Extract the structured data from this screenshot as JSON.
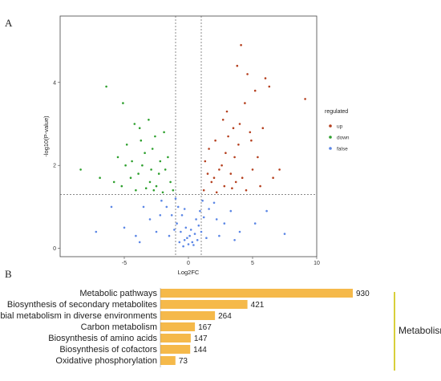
{
  "chart_data": [
    {
      "type": "scatter",
      "panel_label": "A",
      "xlabel": "Log2FC",
      "ylabel": "-log10(P-value)",
      "xlim": [
        -10,
        10
      ],
      "ylim": [
        -0.2,
        5.6
      ],
      "x_ticks": [
        -5,
        0,
        5,
        10
      ],
      "y_ticks": [
        0,
        2,
        4
      ],
      "grid": false,
      "thresholds": {
        "log2fc": [
          -1,
          1
        ],
        "neg_log10_p": 1.3
      },
      "legend": {
        "title": "regulated",
        "placement": "right",
        "items": [
          {
            "label": "up",
            "color": "#b5401f"
          },
          {
            "label": "down",
            "color": "#2ea02e"
          },
          {
            "label": "false",
            "color": "#5b86e5"
          }
        ]
      },
      "series": [
        {
          "name": "up",
          "color": "#b5401f",
          "points": [
            [
              4.1,
              4.9
            ],
            [
              3.8,
              4.4
            ],
            [
              4.6,
              4.2
            ],
            [
              6.0,
              4.1
            ],
            [
              5.2,
              3.8
            ],
            [
              4.4,
              3.5
            ],
            [
              3.0,
              3.3
            ],
            [
              2.7,
              3.1
            ],
            [
              3.5,
              2.9
            ],
            [
              4.8,
              2.8
            ],
            [
              6.3,
              3.9
            ],
            [
              2.1,
              2.6
            ],
            [
              1.6,
              2.4
            ],
            [
              2.9,
              2.3
            ],
            [
              3.9,
              2.5
            ],
            [
              5.4,
              2.2
            ],
            [
              4.9,
              2.6
            ],
            [
              1.3,
              2.1
            ],
            [
              2.4,
              1.9
            ],
            [
              3.3,
              1.8
            ],
            [
              4.2,
              1.7
            ],
            [
              5.0,
              1.9
            ],
            [
              6.6,
              1.7
            ],
            [
              1.8,
              1.6
            ],
            [
              2.8,
              1.5
            ],
            [
              3.7,
              1.6
            ],
            [
              4.5,
              1.4
            ],
            [
              5.6,
              1.5
            ],
            [
              1.2,
              1.4
            ],
            [
              2.2,
              1.35
            ],
            [
              9.1,
              3.6
            ],
            [
              1.5,
              1.8
            ],
            [
              2.6,
              2.0
            ],
            [
              3.1,
              2.7
            ],
            [
              3.6,
              2.2
            ],
            [
              4.0,
              3.0
            ],
            [
              5.8,
              2.9
            ],
            [
              7.1,
              1.9
            ],
            [
              2.0,
              1.7
            ],
            [
              3.4,
              1.45
            ]
          ]
        },
        {
          "name": "down",
          "color": "#2ea02e",
          "points": [
            [
              -6.4,
              3.9
            ],
            [
              -5.1,
              3.5
            ],
            [
              -4.2,
              3.0
            ],
            [
              -3.8,
              2.9
            ],
            [
              -3.1,
              3.1
            ],
            [
              -2.6,
              2.7
            ],
            [
              -4.8,
              2.5
            ],
            [
              -5.5,
              2.2
            ],
            [
              -3.4,
              2.3
            ],
            [
              -2.2,
              2.1
            ],
            [
              -1.8,
              1.9
            ],
            [
              -2.9,
              1.9
            ],
            [
              -3.9,
              1.8
            ],
            [
              -4.5,
              1.7
            ],
            [
              -5.8,
              1.6
            ],
            [
              -1.4,
              1.6
            ],
            [
              -2.5,
              1.5
            ],
            [
              -3.3,
              1.45
            ],
            [
              -4.1,
              1.4
            ],
            [
              -6.9,
              1.7
            ],
            [
              -8.4,
              1.9
            ],
            [
              -1.2,
              1.4
            ],
            [
              -2.0,
              1.35
            ],
            [
              -3.6,
              2.0
            ],
            [
              -4.9,
              2.0
            ],
            [
              -2.8,
              2.4
            ],
            [
              -1.6,
              2.2
            ],
            [
              -3.0,
              1.6
            ],
            [
              -5.2,
              1.5
            ],
            [
              -2.3,
              1.8
            ],
            [
              -1.9,
              2.8
            ],
            [
              -3.7,
              2.6
            ],
            [
              -4.4,
              2.1
            ],
            [
              -2.7,
              1.4
            ]
          ]
        },
        {
          "name": "false",
          "color": "#5b86e5",
          "points": [
            [
              0.0,
              0.1
            ],
            [
              -0.3,
              0.2
            ],
            [
              0.3,
              0.15
            ],
            [
              -0.6,
              0.4
            ],
            [
              0.5,
              0.35
            ],
            [
              -0.9,
              0.6
            ],
            [
              0.8,
              0.55
            ],
            [
              -1.3,
              0.8
            ],
            [
              1.2,
              0.75
            ],
            [
              -1.7,
              1.0
            ],
            [
              1.6,
              0.95
            ],
            [
              -2.1,
              1.15
            ],
            [
              2.0,
              1.1
            ],
            [
              -0.2,
              0.5
            ],
            [
              0.2,
              0.45
            ],
            [
              -0.5,
              0.8
            ],
            [
              0.6,
              0.7
            ],
            [
              -0.8,
              1.0
            ],
            [
              0.9,
              0.9
            ],
            [
              -1.0,
              1.2
            ],
            [
              1.1,
              1.15
            ],
            [
              -3.0,
              0.7
            ],
            [
              2.8,
              0.6
            ],
            [
              -4.1,
              0.3
            ],
            [
              4.0,
              0.4
            ],
            [
              -2.5,
              0.4
            ],
            [
              2.4,
              0.3
            ],
            [
              -3.5,
              1.0
            ],
            [
              3.3,
              0.9
            ],
            [
              -5.0,
              0.5
            ],
            [
              5.2,
              0.6
            ],
            [
              -6.0,
              1.0
            ],
            [
              6.1,
              0.9
            ],
            [
              -0.1,
              0.25
            ],
            [
              0.1,
              0.3
            ],
            [
              -0.4,
              0.05
            ],
            [
              0.4,
              0.08
            ],
            [
              -1.5,
              0.3
            ],
            [
              1.4,
              0.25
            ],
            [
              -2.2,
              0.8
            ],
            [
              2.2,
              0.7
            ],
            [
              -0.7,
              0.15
            ],
            [
              0.7,
              0.2
            ],
            [
              -1.1,
              0.45
            ],
            [
              1.0,
              0.4
            ],
            [
              -3.8,
              0.15
            ],
            [
              3.6,
              0.2
            ],
            [
              -7.2,
              0.4
            ],
            [
              7.5,
              0.35
            ],
            [
              -0.3,
              0.95
            ]
          ]
        }
      ]
    },
    {
      "type": "bar",
      "panel_label": "B",
      "orientation": "horizontal",
      "color": "#f5b94a",
      "bracket_color": "#d8cf3a",
      "group_label": "Metabolism",
      "categories": [
        "Metabolic pathways",
        "Biosynthesis of secondary metabolites",
        "Microbial metabolism in diverse environments",
        "Carbon metabolism",
        "Biosynthesis of amino acids",
        "Biosynthesis of cofactors",
        "Oxidative phosphorylation"
      ],
      "values": [
        930,
        421,
        264,
        167,
        147,
        144,
        73
      ],
      "value_labels": [
        "930",
        "421",
        "264",
        "167",
        "147",
        "144",
        "73"
      ],
      "xlim": [
        0,
        930
      ]
    }
  ]
}
